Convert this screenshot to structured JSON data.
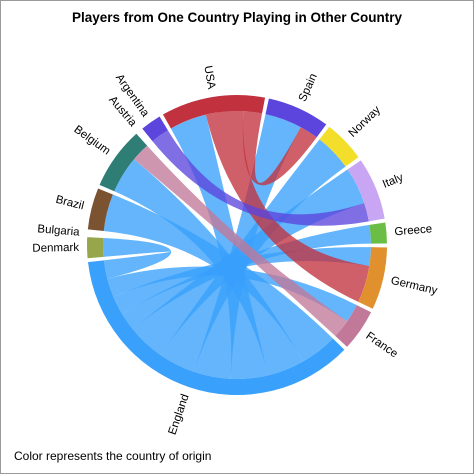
{
  "chart_data": {
    "type": "chord",
    "title": "Players from One Country Playing in Other Country",
    "footnote": "Color represents the country of origin",
    "segments": [
      {
        "name": "Brazil",
        "color": "#7b5331"
      },
      {
        "name": "Belgium",
        "color": "#2f7e76"
      },
      {
        "name": "Austria",
        "color": "#c0414f"
      },
      {
        "name": "Argentina",
        "color": "#5b45dc"
      },
      {
        "name": "USA",
        "color": "#c1323e"
      },
      {
        "name": "Spain",
        "color": "#5b45dc"
      },
      {
        "name": "Norway",
        "color": "#f3df2b"
      },
      {
        "name": "Italy",
        "color": "#c8a6f3"
      },
      {
        "name": "Greece",
        "color": "#6cbd45"
      },
      {
        "name": "Germany",
        "color": "#e0912e"
      },
      {
        "name": "France",
        "color": "#c27898"
      },
      {
        "name": "England",
        "color": "#39a0fb"
      },
      {
        "name": "Denmark",
        "color": "#97a64a"
      },
      {
        "name": "Bulgaria",
        "color": "#b861ea"
      }
    ],
    "flows": [
      {
        "from": "England",
        "to": "Brazil",
        "value": 2
      },
      {
        "from": "England",
        "to": "Belgium",
        "value": 2
      },
      {
        "from": "England",
        "to": "USA",
        "value": 2
      },
      {
        "from": "England",
        "to": "Spain",
        "value": 2
      },
      {
        "from": "England",
        "to": "Norway",
        "value": 2
      },
      {
        "from": "England",
        "to": "Italy",
        "value": 2
      },
      {
        "from": "England",
        "to": "Greece",
        "value": 1
      },
      {
        "from": "England",
        "to": "Germany",
        "value": 1
      },
      {
        "from": "England",
        "to": "France",
        "value": 1
      },
      {
        "from": "England",
        "to": "Denmark",
        "value": 1
      },
      {
        "from": "USA",
        "to": "Germany",
        "value": 2
      },
      {
        "from": "USA",
        "to": "Spain",
        "value": 1
      },
      {
        "from": "France",
        "to": "Belgium",
        "value": 1
      },
      {
        "from": "Argentina",
        "to": "Italy",
        "value": 1
      }
    ]
  }
}
